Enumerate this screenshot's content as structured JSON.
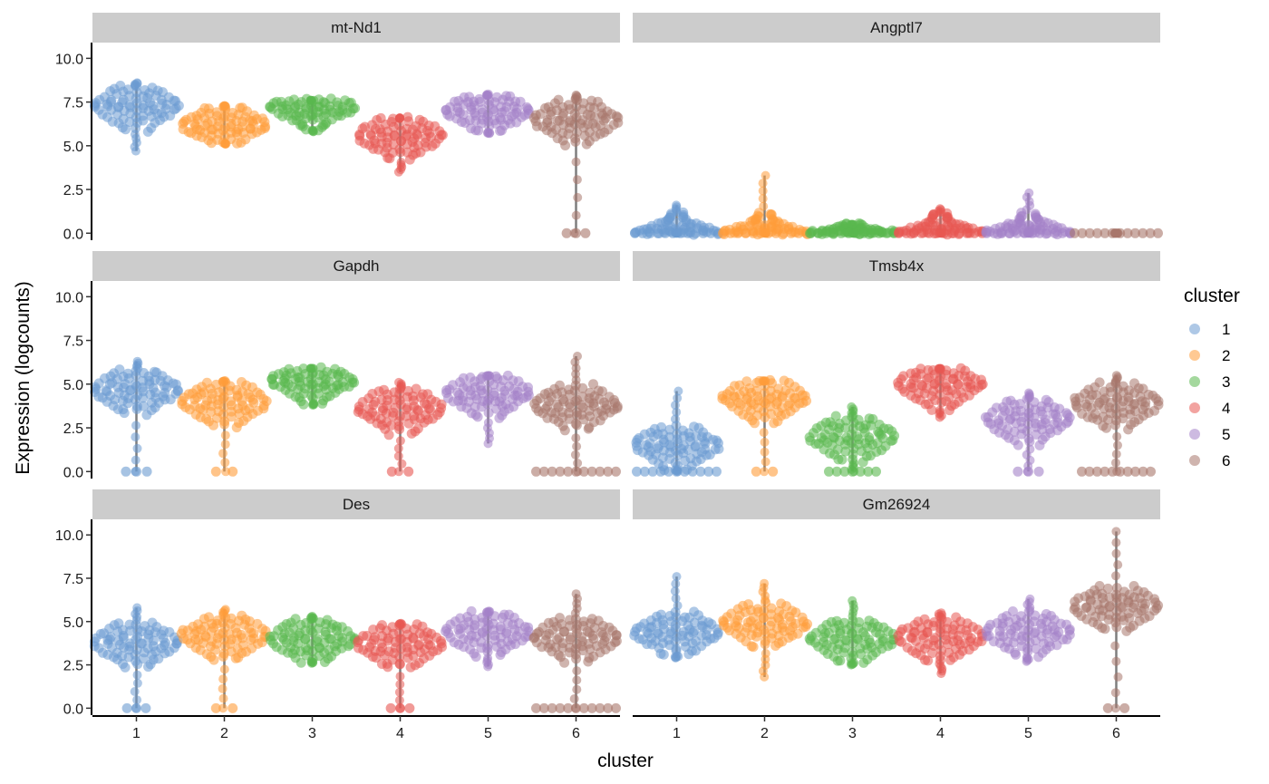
{
  "chart_data": {
    "type": "violin",
    "xlabel": "cluster",
    "ylabel": "Expression (logcounts)",
    "ylim": [
      -0.4,
      10.9
    ],
    "yticks": [
      0.0,
      2.5,
      5.0,
      7.5,
      10.0
    ],
    "ytick_labels": [
      "0.0",
      "2.5",
      "5.0",
      "7.5",
      "10.0"
    ],
    "categories": [
      "1",
      "2",
      "3",
      "4",
      "5",
      "6"
    ],
    "colors": [
      "#6b9bd1",
      "#ff9d3a",
      "#5ab84f",
      "#e85752",
      "#a482c8",
      "#a8776b"
    ],
    "legend": {
      "title": "cluster",
      "position": "right",
      "labels": [
        "1",
        "2",
        "3",
        "4",
        "5",
        "6"
      ]
    },
    "facets": [
      {
        "gene": "mt-Nd1",
        "min": [
          4.7,
          5.1,
          5.8,
          3.5,
          5.7,
          0.0
        ],
        "median": [
          7.3,
          6.2,
          7.2,
          5.6,
          7.0,
          6.5
        ],
        "max": [
          8.6,
          7.3,
          7.6,
          6.6,
          7.9,
          7.9
        ],
        "zero_frac": [
          0,
          0,
          0,
          0,
          0,
          0.02
        ]
      },
      {
        "gene": "Angptl7",
        "min": [
          0,
          0,
          0,
          0,
          0,
          0
        ],
        "median": [
          0,
          0,
          0,
          0,
          0,
          0
        ],
        "max": [
          1.6,
          3.3,
          0.5,
          1.4,
          2.3,
          0.0
        ],
        "zero_frac": [
          1,
          1,
          1,
          1,
          1,
          1
        ]
      },
      {
        "gene": "Gapdh",
        "min": [
          0.0,
          0.0,
          3.8,
          0.0,
          1.6,
          0.0
        ],
        "median": [
          4.7,
          4.0,
          5.2,
          3.6,
          4.5,
          3.8
        ],
        "max": [
          6.3,
          5.2,
          5.9,
          5.1,
          5.5,
          6.6
        ],
        "zero_frac": [
          0.03,
          0.01,
          0,
          0.01,
          0,
          0.3
        ]
      },
      {
        "gene": "Tmsb4x",
        "min": [
          0.0,
          0.0,
          0.0,
          3.1,
          0.0,
          0.0
        ],
        "median": [
          1.5,
          4.2,
          2.0,
          5.0,
          3.0,
          3.9
        ],
        "max": [
          4.6,
          5.2,
          3.7,
          5.9,
          4.5,
          5.5
        ],
        "zero_frac": [
          0.3,
          0.01,
          0.15,
          0,
          0.03,
          0.25
        ]
      },
      {
        "gene": "Des",
        "min": [
          0.0,
          0.0,
          2.6,
          0.0,
          2.4,
          0.0
        ],
        "median": [
          3.8,
          4.2,
          4.0,
          3.7,
          4.4,
          4.1
        ],
        "max": [
          5.8,
          5.7,
          5.3,
          4.9,
          5.6,
          6.6
        ],
        "zero_frac": [
          0.02,
          0.01,
          0,
          0.02,
          0,
          0.3
        ]
      },
      {
        "gene": "Gm26924",
        "min": [
          2.9,
          1.8,
          2.5,
          2.0,
          2.7,
          0.0
        ],
        "median": [
          4.4,
          4.9,
          4.0,
          4.1,
          4.4,
          5.9
        ],
        "max": [
          7.6,
          7.2,
          6.2,
          5.5,
          6.3,
          10.2
        ],
        "zero_frac": [
          0,
          0,
          0,
          0,
          0,
          0.01
        ]
      }
    ]
  }
}
